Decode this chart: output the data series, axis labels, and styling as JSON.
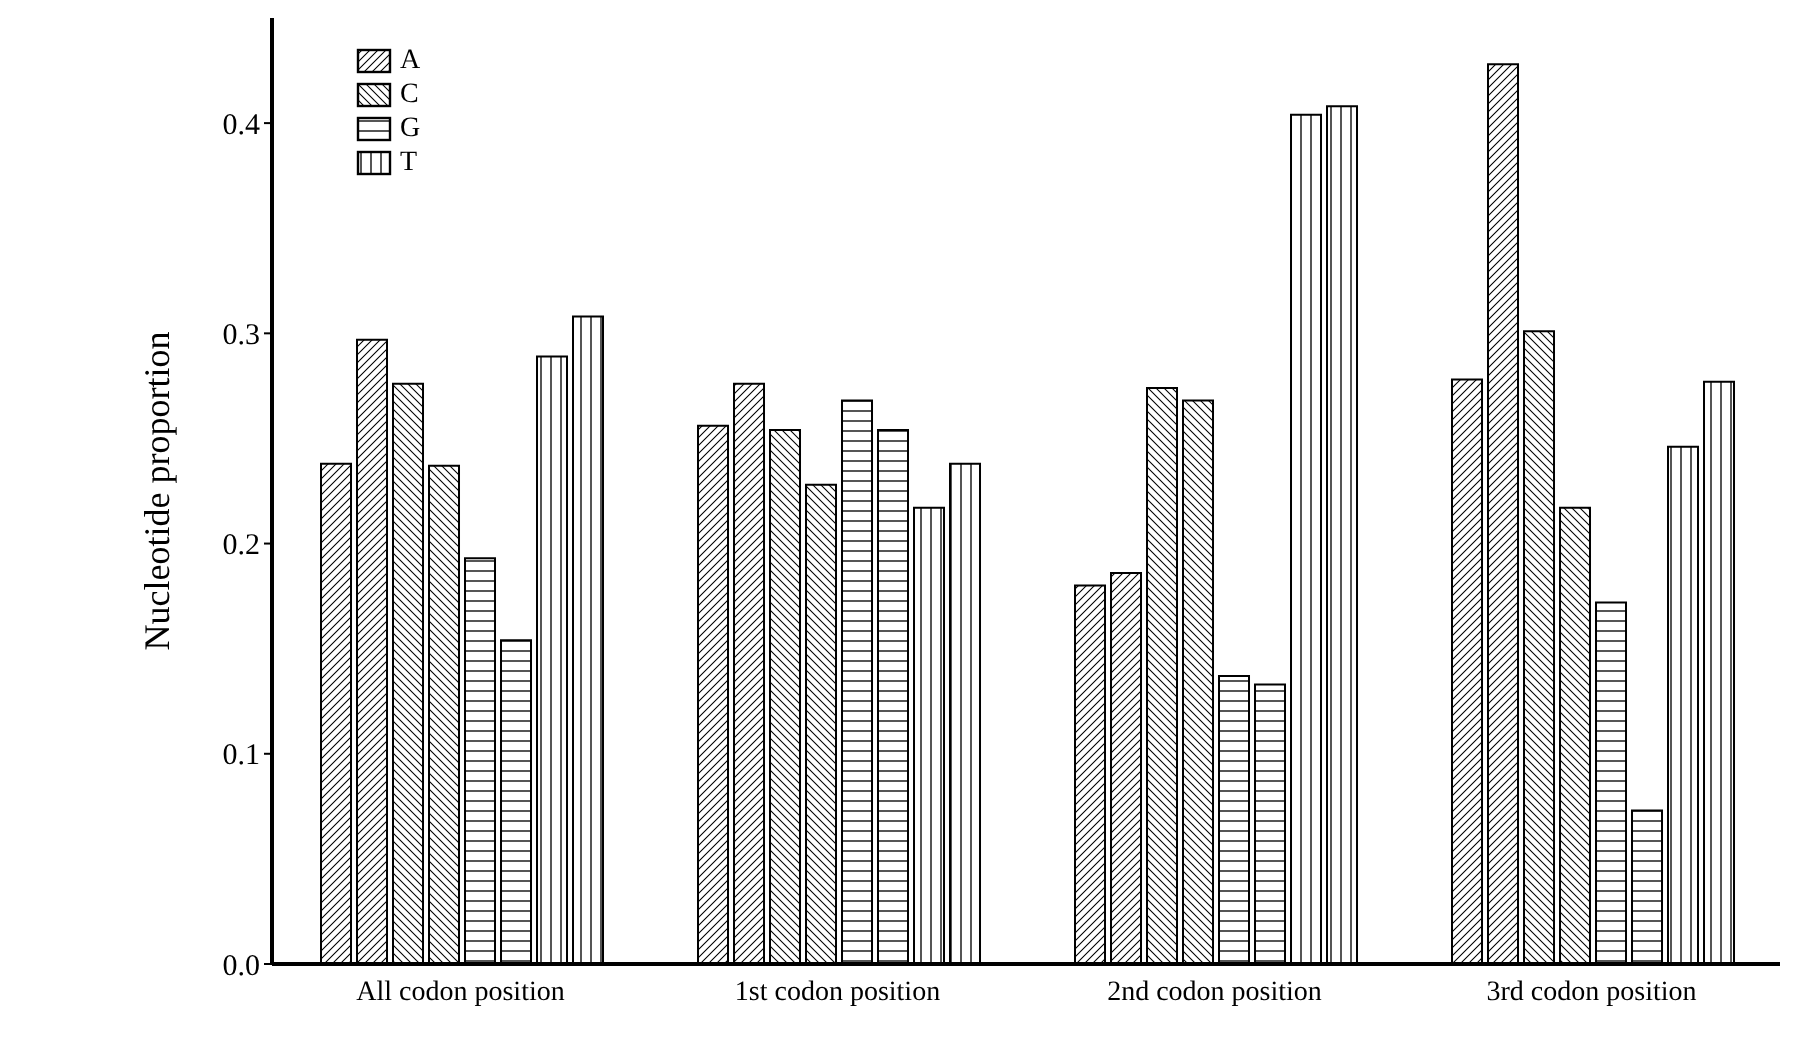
{
  "chart_data": {
    "type": "bar",
    "ylabel": "Nucleotide proportion",
    "categories": [
      "All codon position",
      "1st codon position",
      "2nd codon position",
      "3rd codon position"
    ],
    "series": [
      {
        "name": "A",
        "color": "#000000",
        "values": [
          0.238,
          0.256,
          0.18,
          0.278
        ]
      },
      {
        "color": "#000000",
        "values": [
          0.297,
          0.276,
          0.186,
          0.428
        ]
      },
      {
        "name": "C",
        "color": "#000000",
        "values": [
          0.276,
          0.254,
          0.274,
          0.301
        ]
      },
      {
        "color": "#000000",
        "values": [
          0.237,
          0.228,
          0.268,
          0.217
        ]
      },
      {
        "name": "G",
        "color": "#000000",
        "values": [
          0.193,
          0.268,
          0.137,
          0.172
        ]
      },
      {
        "color": "#000000",
        "values": [
          0.154,
          0.254,
          0.133,
          0.073
        ]
      },
      {
        "name": "T",
        "color": "#000000",
        "values": [
          0.289,
          0.217,
          0.404,
          0.246
        ]
      },
      {
        "color": "#000000",
        "values": [
          0.308,
          0.238,
          0.408,
          0.277
        ]
      }
    ],
    "ylim": [
      0,
      0.45
    ],
    "yticks": [
      {
        "value": 0.0,
        "label": "0.0"
      },
      0.1,
      0.2,
      0.3,
      0.4
    ],
    "legend": "top left",
    "grid": false
  }
}
